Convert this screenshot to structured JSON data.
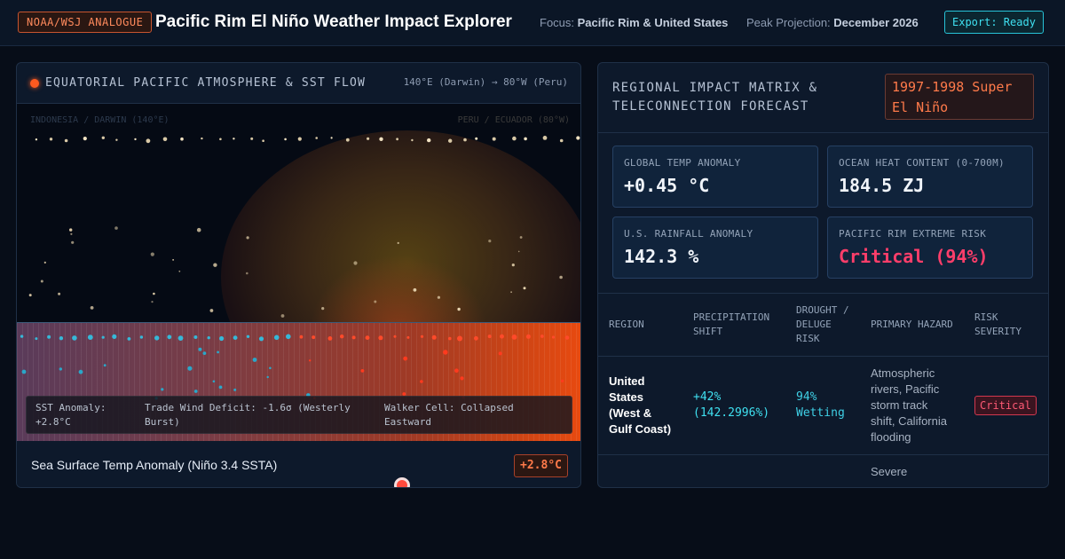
{
  "header": {
    "badge": "NOAA/WSJ ANALOGUE",
    "title": "Pacific Rim El Niño Weather Impact Explorer",
    "focus_label": "Focus:",
    "focus_value": "Pacific Rim & United States",
    "peak_label": "Peak Projection:",
    "peak_value": "December 2026",
    "export_label": "Export: Ready"
  },
  "left_panel": {
    "title": "EQUATORIAL PACIFIC ATMOSPHERE & SST FLOW",
    "subtitle": "140°E (Darwin) → 80°W (Peru)",
    "region_west": "INDONESIA / DARWIN (140°E)",
    "region_east": "PERU / ECUADOR (80°W)",
    "readouts": {
      "sst_anomaly": "SST Anomaly: +2.8°C",
      "trade_wind": "Trade Wind Deficit: -1.6σ (Westerly Burst)",
      "walker": "Walker Cell: Collapsed Eastward"
    },
    "footer_label": "Sea Surface Temp Anomaly (Niño 3.4 SSTA)",
    "footer_value": "+2.8°C"
  },
  "right_panel": {
    "title": "REGIONAL IMPACT MATRIX & TELECONNECTION FORECAST",
    "event_badge": "1997-1998 Super El Niño",
    "kpis": [
      {
        "label": "GLOBAL TEMP ANOMALY",
        "value": "+0.45 °C"
      },
      {
        "label": "OCEAN HEAT CONTENT (0-700M)",
        "value": "184.5 ZJ"
      },
      {
        "label": "U.S. RAINFALL ANOMALY",
        "value": "142.3 %"
      },
      {
        "label": "PACIFIC RIM EXTREME RISK",
        "value": "Critical (94%)"
      }
    ],
    "table": {
      "headers": [
        "REGION",
        "PRECIPITATION SHIFT",
        "DROUGHT / DELUGE RISK",
        "PRIMARY HAZARD",
        "RISK SEVERITY"
      ],
      "rows": [
        {
          "region": "United States (West & Gulf Coast)",
          "precip": "+42% (142.2996%)",
          "risk": "94% Wetting",
          "hazard": "Atmospheric rivers, Pacific storm track shift, California flooding",
          "severity": "Critical"
        },
        {
          "region": "",
          "precip": "",
          "risk": "",
          "hazard": "Severe",
          "severity": ""
        }
      ]
    }
  },
  "colors": {
    "accent_orange": "#ff7a4a",
    "accent_cyan": "#3fe0f0",
    "critical": "#ff3e6a",
    "background": "#070d18"
  }
}
